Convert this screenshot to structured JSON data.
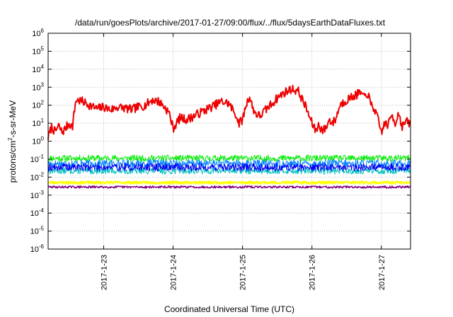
{
  "chart_data": {
    "type": "line",
    "title": "/data/run/goesPlots/archive/2017-01-27/09:00/flux/../flux/5daysEarthDataFluxes.txt",
    "xlabel": "Coordinated Universal Time (UTC)",
    "ylabel_main": "protons/cm",
    "ylabel_sup": "2",
    "ylabel_rest": "-s-sr-MeV",
    "y_scale": "log",
    "ylim_exp": [
      -6,
      6
    ],
    "y_ticks": [
      {
        "base": "10",
        "exp": "6",
        "value": 6
      },
      {
        "base": "10",
        "exp": "5",
        "value": 5
      },
      {
        "base": "10",
        "exp": "4",
        "value": 4
      },
      {
        "base": "10",
        "exp": "3",
        "value": 3
      },
      {
        "base": "10",
        "exp": "2",
        "value": 2
      },
      {
        "base": "10",
        "exp": "1",
        "value": 1
      },
      {
        "base": "10",
        "exp": "0",
        "value": 0
      },
      {
        "base": "10",
        "exp": "-1",
        "value": -1
      },
      {
        "base": "10",
        "exp": "-2",
        "value": -2
      },
      {
        "base": "10",
        "exp": "-3",
        "value": -3
      },
      {
        "base": "10",
        "exp": "-4",
        "value": -4
      },
      {
        "base": "10",
        "exp": "-5",
        "value": -5
      },
      {
        "base": "10",
        "exp": "-6",
        "value": -6
      }
    ],
    "xlim": [
      22.2,
      27.42
    ],
    "x_ticks": [
      {
        "label": "2017-1-23",
        "value": 23
      },
      {
        "label": "2017-1-24",
        "value": 24
      },
      {
        "label": "2017-1-25",
        "value": 25
      },
      {
        "label": "2017-1-26",
        "value": 26
      },
      {
        "label": "2017-1-27",
        "value": 27
      }
    ],
    "grid": true,
    "series": [
      {
        "color": "#ee0000",
        "width": 2,
        "kind": "profile",
        "x": [
          22.2,
          22.25,
          22.3,
          22.35,
          22.4,
          22.45,
          22.5,
          22.55,
          22.6,
          22.7,
          22.8,
          22.9,
          23.0,
          23.1,
          23.2,
          23.3,
          23.4,
          23.5,
          23.6,
          23.7,
          23.8,
          23.9,
          23.95,
          24.0,
          24.05,
          24.1,
          24.2,
          24.3,
          24.4,
          24.5,
          24.6,
          24.7,
          24.8,
          24.9,
          24.95,
          25.0,
          25.05,
          25.1,
          25.15,
          25.2,
          25.25,
          25.3,
          25.4,
          25.5,
          25.6,
          25.7,
          25.8,
          25.85,
          25.9,
          25.95,
          26.0,
          26.05,
          26.1,
          26.15,
          26.2,
          26.25,
          26.3,
          26.35,
          26.4,
          26.5,
          26.6,
          26.7,
          26.75,
          26.8,
          26.85,
          26.9,
          26.95,
          27.0,
          27.05,
          27.1,
          27.15,
          27.2,
          27.25,
          27.3,
          27.35,
          27.4
        ],
        "logy": [
          0.2,
          0.8,
          0.5,
          0.85,
          0.5,
          0.7,
          1.0,
          0.8,
          2.3,
          2.2,
          2.0,
          1.8,
          1.9,
          1.75,
          1.9,
          1.85,
          1.75,
          1.9,
          2.0,
          2.3,
          2.2,
          1.8,
          1.5,
          0.7,
          1.0,
          1.3,
          1.2,
          1.4,
          1.6,
          1.8,
          2.0,
          2.2,
          2.1,
          1.5,
          1.0,
          1.2,
          2.0,
          2.5,
          1.8,
          1.5,
          1.4,
          1.6,
          2.0,
          2.4,
          2.7,
          2.9,
          2.8,
          2.4,
          2.0,
          1.5,
          1.0,
          0.6,
          0.9,
          0.6,
          0.7,
          1.2,
          1.0,
          1.3,
          2.0,
          2.3,
          2.5,
          2.7,
          2.4,
          2.7,
          2.0,
          1.8,
          1.2,
          0.5,
          1.0,
          0.9,
          1.5,
          1.0,
          1.6,
          0.8,
          1.1,
          1.0
        ],
        "noise": 0.25,
        "steps": 520,
        "seed": 7
      },
      {
        "color": "#00ee00",
        "width": 1,
        "kind": "noise",
        "center": -0.95,
        "amp": 0.18,
        "steps": 700,
        "seed": 11
      },
      {
        "color": "#00c0c0",
        "width": 1,
        "kind": "noise",
        "center": -1.65,
        "amp": 0.18,
        "steps": 700,
        "seed": 13
      },
      {
        "color": "#0080ff",
        "width": 1,
        "kind": "noise",
        "center": -1.25,
        "amp": 0.22,
        "steps": 700,
        "seed": 17
      },
      {
        "color": "#0000ee",
        "width": 1,
        "kind": "noise",
        "center": -1.45,
        "amp": 0.22,
        "steps": 700,
        "seed": 19
      },
      {
        "color": "#ffff00",
        "width": 2,
        "kind": "noise",
        "center": -2.3,
        "amp": 0.08,
        "steps": 700,
        "seed": 23
      },
      {
        "color": "#800080",
        "width": 1.5,
        "kind": "noise",
        "center": -2.55,
        "amp": 0.06,
        "steps": 700,
        "seed": 29
      }
    ]
  }
}
